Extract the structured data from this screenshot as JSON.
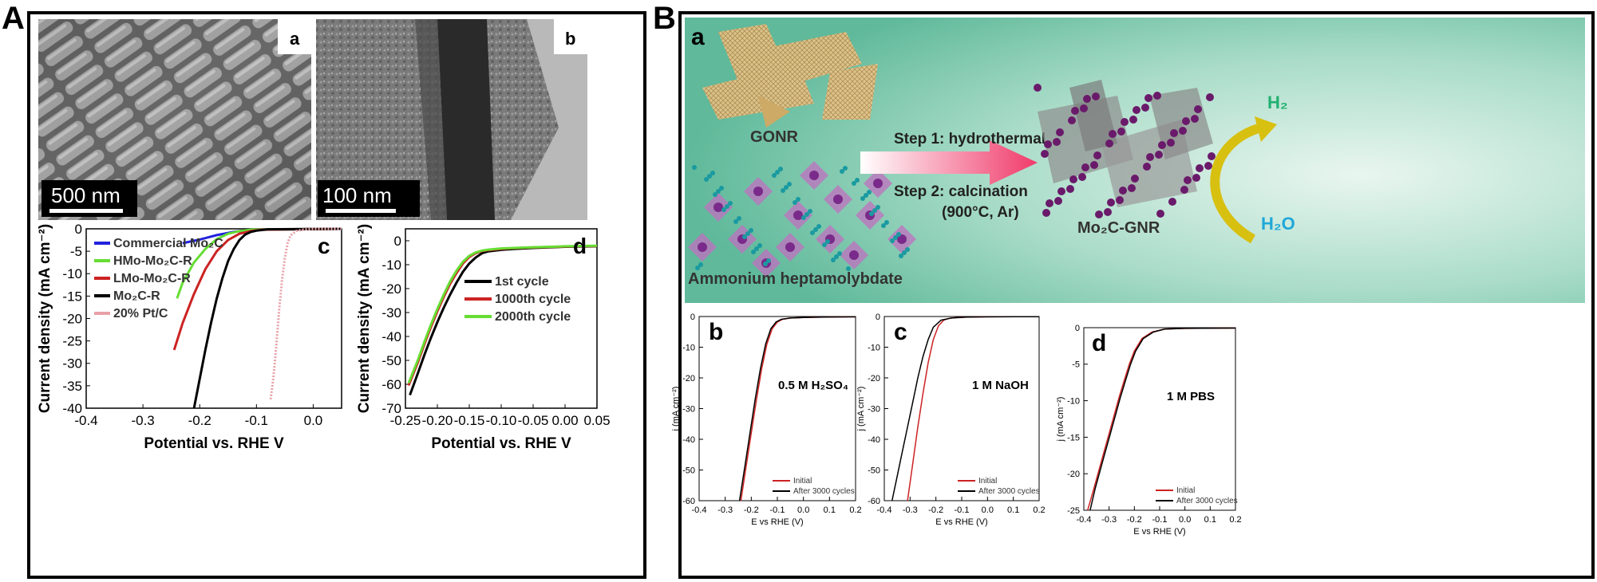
{
  "panel_A": {
    "label": "A",
    "micrographs": {
      "a": {
        "label": "a",
        "scale_bar": "500 nm"
      },
      "b": {
        "label": "b",
        "scale_bar": "100 nm"
      }
    }
  },
  "panel_B": {
    "label": "B",
    "schematic": {
      "label": "a",
      "gonr": "GONR",
      "precursor": "Ammonium  heptamolybdate",
      "step1": "Step 1: hydrothermal",
      "step2": "Step 2: calcination",
      "step2_cond": "(900°C, Ar)",
      "product": "Mo₂C-GNR",
      "h2": "H₂",
      "h2o": "H₂O"
    }
  },
  "colors": {
    "black": "#000000",
    "red": "#cc2222",
    "green": "#66dd33",
    "blue": "#2222dd",
    "pink": "#e8a0a8",
    "bg_teal": "#7fcbb0",
    "arrow_pink": "#f04070",
    "h2_green": "#20b070",
    "h2o_blue": "#20a8d8",
    "mo_purple": "#6a1a6a"
  },
  "chart_data": [
    {
      "id": "A-c",
      "type": "line",
      "label": "c",
      "xlabel": "Potential vs. RHE V",
      "ylabel": "Current density (mA cm⁻²)",
      "xlim": [
        -0.4,
        0.05
      ],
      "ylim": [
        -40,
        0
      ],
      "xticks": [
        "-0.4",
        "-0.3",
        "-0.2",
        "-0.1",
        "0.0"
      ],
      "yticks": [
        "0",
        "-5",
        "-10",
        "-15",
        "-20",
        "-25",
        "-30",
        "-35",
        "-40"
      ],
      "legend": "top-left",
      "series": [
        {
          "name": "Commercial Mo₂C",
          "color": "#2222dd",
          "x": [
            -0.23,
            -0.2,
            -0.17,
            -0.14,
            -0.12,
            -0.1,
            0.05
          ],
          "y": [
            -3.2,
            -2.4,
            -1.4,
            -0.7,
            -0.35,
            -0.2,
            0
          ]
        },
        {
          "name": "HMo-Mo₂C-R",
          "color": "#66dd33",
          "x": [
            -0.24,
            -0.23,
            -0.21,
            -0.19,
            -0.17,
            -0.15,
            -0.13,
            -0.11,
            0.05
          ],
          "y": [
            -15.5,
            -12,
            -7.5,
            -4.5,
            -2.3,
            -1.1,
            -0.5,
            -0.2,
            0
          ]
        },
        {
          "name": "LMo-Mo₂C-R",
          "color": "#cc2222",
          "x": [
            -0.245,
            -0.23,
            -0.21,
            -0.19,
            -0.17,
            -0.15,
            -0.13,
            -0.11,
            -0.09,
            0.05
          ],
          "y": [
            -27,
            -21,
            -14.5,
            -9,
            -5,
            -2.5,
            -1.1,
            -0.5,
            -0.2,
            0
          ]
        },
        {
          "name": "Mo₂C-R",
          "color": "#000000",
          "x": [
            -0.21,
            -0.2,
            -0.19,
            -0.18,
            -0.17,
            -0.16,
            -0.15,
            -0.14,
            -0.13,
            -0.12,
            -0.11,
            -0.1,
            -0.08,
            0.05
          ],
          "y": [
            -40,
            -33.5,
            -27,
            -21,
            -15.5,
            -11,
            -7.2,
            -4.5,
            -2.5,
            -1.3,
            -0.7,
            -0.4,
            -0.1,
            0
          ]
        },
        {
          "name": "20% Pt/C",
          "color": "#e8a0a8",
          "x": [
            -0.075,
            -0.07,
            -0.065,
            -0.06,
            -0.055,
            -0.05,
            -0.045,
            -0.04,
            -0.03,
            -0.02,
            0.0,
            0.05
          ],
          "y": [
            -38,
            -33,
            -26,
            -18,
            -11.5,
            -6.5,
            -3.2,
            -1.5,
            -0.5,
            -0.2,
            0,
            0
          ]
        }
      ]
    },
    {
      "id": "A-d",
      "type": "line",
      "label": "d",
      "xlabel": "Potential vs. RHE V",
      "ylabel": "Current density (mA cm⁻²)",
      "xlim": [
        -0.25,
        0.05
      ],
      "ylim": [
        -70,
        5
      ],
      "xticks": [
        "-0.25",
        "-0.20",
        "-0.15",
        "-0.10",
        "-0.05",
        "0.00",
        "0.05"
      ],
      "yticks": [
        "0",
        "-10",
        "-20",
        "-30",
        "-40",
        "-50",
        "-60",
        "-70"
      ],
      "legend": "middle-right",
      "series": [
        {
          "name": "1st cycle",
          "color": "#000000",
          "x": [
            -0.243,
            -0.23,
            -0.22,
            -0.21,
            -0.2,
            -0.19,
            -0.18,
            -0.17,
            -0.16,
            -0.15,
            -0.14,
            -0.13,
            -0.12,
            -0.1,
            -0.08,
            -0.05,
            -0.02,
            0.0,
            0.02,
            0.05
          ],
          "y": [
            -64.5,
            -55,
            -47.5,
            -40.5,
            -34,
            -28,
            -22.5,
            -17.5,
            -13,
            -9.5,
            -7,
            -5.2,
            -4.4,
            -3.8,
            -3.4,
            -3.0,
            -2.7,
            -2.5,
            -2.4,
            -2.3
          ]
        },
        {
          "name": "1000th cycle",
          "color": "#cc2222",
          "x": [
            -0.245,
            -0.23,
            -0.22,
            -0.21,
            -0.2,
            -0.19,
            -0.18,
            -0.17,
            -0.16,
            -0.15,
            -0.14,
            -0.13,
            -0.12,
            -0.1,
            -0.08,
            -0.05,
            -0.02,
            0.0,
            0.02,
            0.05
          ],
          "y": [
            -60.5,
            -50.5,
            -43,
            -36,
            -29.5,
            -23.5,
            -18,
            -13.5,
            -9.5,
            -6.8,
            -5.2,
            -4.3,
            -3.9,
            -3.4,
            -3.1,
            -2.8,
            -2.6,
            -2.4,
            -2.3,
            -2.2
          ]
        },
        {
          "name": "2000th cycle",
          "color": "#66dd33",
          "x": [
            -0.245,
            -0.23,
            -0.22,
            -0.21,
            -0.2,
            -0.19,
            -0.18,
            -0.17,
            -0.16,
            -0.15,
            -0.14,
            -0.13,
            -0.12,
            -0.1,
            -0.08,
            -0.05,
            -0.02,
            0.0,
            0.02,
            0.05
          ],
          "y": [
            -59.5,
            -49.5,
            -42,
            -35,
            -28.5,
            -22.5,
            -17,
            -12.5,
            -8.8,
            -6.3,
            -4.9,
            -4.1,
            -3.7,
            -3.2,
            -3.0,
            -2.7,
            -2.5,
            -2.3,
            -2.2,
            -2.1
          ]
        }
      ]
    },
    {
      "id": "B-b",
      "type": "line",
      "label": "b",
      "annotation": "0.5 M H₂SO₄",
      "xlabel": "E vs RHE (V)",
      "ylabel": "j (mA cm⁻²)",
      "xlim": [
        -0.4,
        0.2
      ],
      "ylim": [
        -60,
        0
      ],
      "xticks": [
        "-0.4",
        "-0.3",
        "-0.2",
        "-0.1",
        "0.0",
        "0.1",
        "0.2"
      ],
      "yticks": [
        "0",
        "-10",
        "-20",
        "-30",
        "-40",
        "-50",
        "-60"
      ],
      "legend": "bottom-right",
      "series": [
        {
          "name": "Initial",
          "color": "#cc2222",
          "x": [
            -0.24,
            -0.22,
            -0.2,
            -0.18,
            -0.16,
            -0.14,
            -0.12,
            -0.1,
            -0.08,
            -0.05,
            0.0,
            0.1,
            0.2
          ],
          "y": [
            -60,
            -49,
            -38,
            -27,
            -17,
            -9,
            -4,
            -1.8,
            -0.9,
            -0.5,
            -0.3,
            -0.15,
            -0.1
          ]
        },
        {
          "name": "After 3000 cycles",
          "color": "#000000",
          "x": [
            -0.245,
            -0.225,
            -0.205,
            -0.185,
            -0.165,
            -0.145,
            -0.125,
            -0.105,
            -0.085,
            -0.05,
            0.0,
            0.1,
            0.2
          ],
          "y": [
            -60,
            -49,
            -38,
            -27,
            -17,
            -9,
            -4,
            -1.8,
            -0.9,
            -0.5,
            -0.3,
            -0.15,
            -0.1
          ]
        }
      ]
    },
    {
      "id": "B-c",
      "type": "line",
      "label": "c",
      "annotation": "1 M NaOH",
      "xlabel": "E vs RHE (V)",
      "ylabel": "j (mA cm⁻²)",
      "xlim": [
        -0.4,
        0.2
      ],
      "ylim": [
        -60,
        0
      ],
      "xticks": [
        "-0.4",
        "-0.3",
        "-0.2",
        "-0.1",
        "0.0",
        "0.1",
        "0.2"
      ],
      "yticks": [
        "0",
        "-10",
        "-20",
        "-30",
        "-40",
        "-50",
        "-60"
      ],
      "legend": "bottom-right",
      "series": [
        {
          "name": "Initial",
          "color": "#cc2222",
          "x": [
            -0.31,
            -0.29,
            -0.27,
            -0.25,
            -0.23,
            -0.21,
            -0.19,
            -0.17,
            -0.15,
            -0.12,
            -0.08,
            0.0,
            0.2
          ],
          "y": [
            -60,
            -48,
            -36,
            -25,
            -15,
            -7.5,
            -3,
            -1.2,
            -0.6,
            -0.3,
            -0.2,
            -0.1,
            -0.05
          ]
        },
        {
          "name": "After 3000 cycles",
          "color": "#000000",
          "x": [
            -0.37,
            -0.35,
            -0.33,
            -0.31,
            -0.29,
            -0.27,
            -0.25,
            -0.23,
            -0.21,
            -0.18,
            -0.14,
            -0.08,
            0.0,
            0.2
          ],
          "y": [
            -60,
            -52,
            -44,
            -36,
            -28,
            -20,
            -13,
            -7.5,
            -3.5,
            -1.2,
            -0.5,
            -0.2,
            -0.1,
            -0.05
          ]
        }
      ]
    },
    {
      "id": "B-d",
      "type": "line",
      "label": "d",
      "annotation": "1 M PBS",
      "xlabel": "E vs RHE (V)",
      "ylabel": "j (mA cm⁻²)",
      "xlim": [
        -0.4,
        0.2
      ],
      "ylim": [
        -25,
        0
      ],
      "xticks": [
        "-0.4",
        "-0.3",
        "-0.2",
        "-0.1",
        "0.0",
        "0.1",
        "0.2"
      ],
      "yticks": [
        "0",
        "-5",
        "-10",
        "-15",
        "-20",
        "-25"
      ],
      "legend": "bottom-right",
      "series": [
        {
          "name": "Initial",
          "color": "#cc2222",
          "x": [
            -0.385,
            -0.36,
            -0.34,
            -0.32,
            -0.3,
            -0.28,
            -0.26,
            -0.24,
            -0.22,
            -0.2,
            -0.17,
            -0.13,
            -0.08,
            0.0,
            0.2
          ],
          "y": [
            -25,
            -22,
            -19.5,
            -17,
            -14.5,
            -12,
            -9.5,
            -7.2,
            -5,
            -3.2,
            -1.5,
            -0.6,
            -0.2,
            -0.1,
            -0.05
          ]
        },
        {
          "name": "After 3000 cycles",
          "color": "#000000",
          "x": [
            -0.375,
            -0.355,
            -0.335,
            -0.315,
            -0.295,
            -0.275,
            -0.255,
            -0.235,
            -0.215,
            -0.195,
            -0.165,
            -0.125,
            -0.08,
            0.0,
            0.2
          ],
          "y": [
            -25,
            -22,
            -19.5,
            -17,
            -14.5,
            -12,
            -9.5,
            -7.2,
            -5,
            -3.2,
            -1.5,
            -0.6,
            -0.2,
            -0.1,
            -0.05
          ]
        }
      ]
    }
  ]
}
